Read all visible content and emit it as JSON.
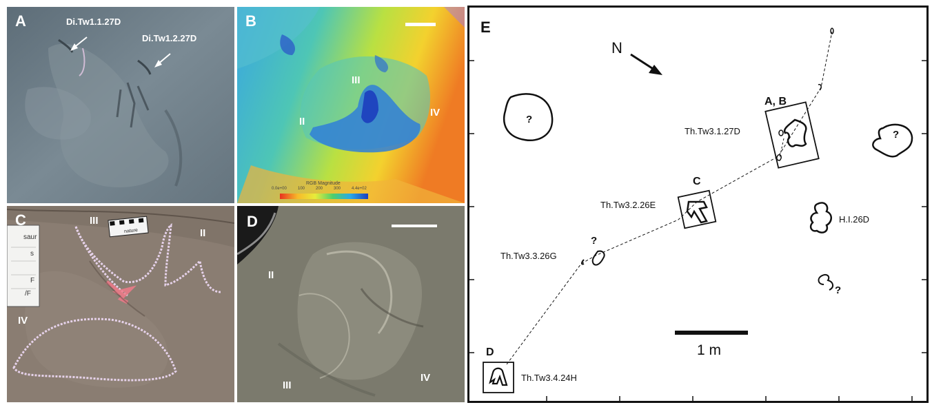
{
  "panels": {
    "A": {
      "label": "A",
      "track_1": "Di.Tw1.1.27D",
      "track_2": "Di.Tw1.2.27D"
    },
    "B": {
      "label": "B",
      "digit_ii": "II",
      "digit_iii": "III",
      "digit_iv": "IV",
      "colorbar_title": "RGB Magnitude",
      "colorbar_ticks": [
        "0.0e+00",
        "100",
        "200",
        "300",
        "4.4e+02"
      ],
      "colorbar_colors": [
        "#e8321e",
        "#f7b92a",
        "#e8ec3a",
        "#4ecf6b",
        "#2aa9e6",
        "#1e3fbd"
      ]
    },
    "C": {
      "label": "C",
      "digit_ii": "II",
      "digit_iii": "III",
      "digit_iv": "IV",
      "scale_brand": "nature",
      "notebook_lines": [
        "saur",
        "s",
        "F",
        "/F"
      ]
    },
    "D": {
      "label": "D",
      "digit_ii": "II",
      "digit_iii": "III",
      "digit_iv": "IV"
    },
    "E": {
      "label": "E",
      "north": "N",
      "box_ab_label": "A, B",
      "box_c_label": "C",
      "box_d_label": "D",
      "track_th1": "Th.Tw3.1.27D",
      "track_th2": "Th.Tw3.2.26E",
      "track_th3": "Th.Tw3.3.26G",
      "track_th4": "Th.Tw3.4.24H",
      "track_hi": "H.I.26D",
      "question": "?",
      "scale_label": "1 m"
    }
  }
}
